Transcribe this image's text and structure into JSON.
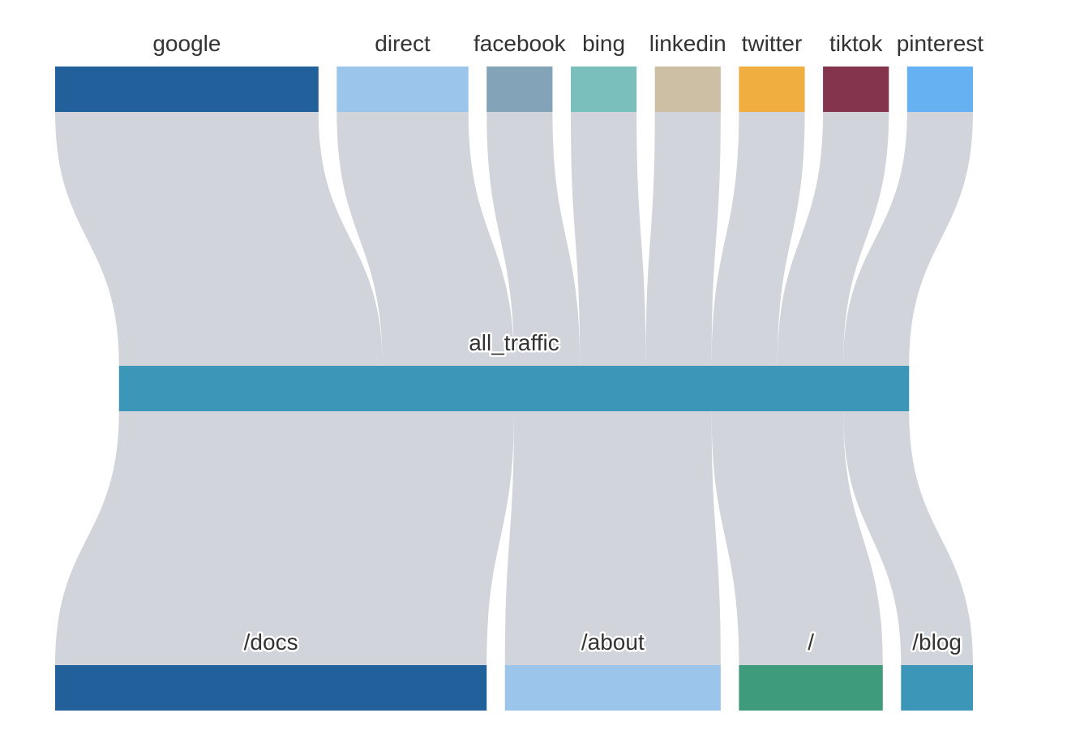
{
  "diagram": {
    "type": "sankey",
    "link_color": "#d1d5db",
    "sources": [
      {
        "label": "google",
        "value": 4,
        "color": "#22609c"
      },
      {
        "label": "direct",
        "value": 2,
        "color": "#9bc5ea"
      },
      {
        "label": "facebook",
        "value": 1,
        "color": "#82a3b8"
      },
      {
        "label": "bing",
        "value": 1,
        "color": "#7abfbc"
      },
      {
        "label": "linkedin",
        "value": 1,
        "color": "#cdbfa3"
      },
      {
        "label": "twitter",
        "value": 1,
        "color": "#f0ae40"
      },
      {
        "label": "tiktok",
        "value": 1,
        "color": "#84344c"
      },
      {
        "label": "pinterest",
        "value": 1,
        "color": "#66b1f2"
      }
    ],
    "middle": {
      "label": "all_traffic",
      "value": 12,
      "color": "#3b96b7"
    },
    "targets": [
      {
        "label": "/docs",
        "value": 6,
        "color": "#22609c"
      },
      {
        "label": "/about",
        "value": 3,
        "color": "#9bc5ea"
      },
      {
        "label": "/",
        "value": 2,
        "color": "#3e9b7c"
      },
      {
        "label": "/blog",
        "value": 1,
        "color": "#3b96b7"
      }
    ]
  }
}
